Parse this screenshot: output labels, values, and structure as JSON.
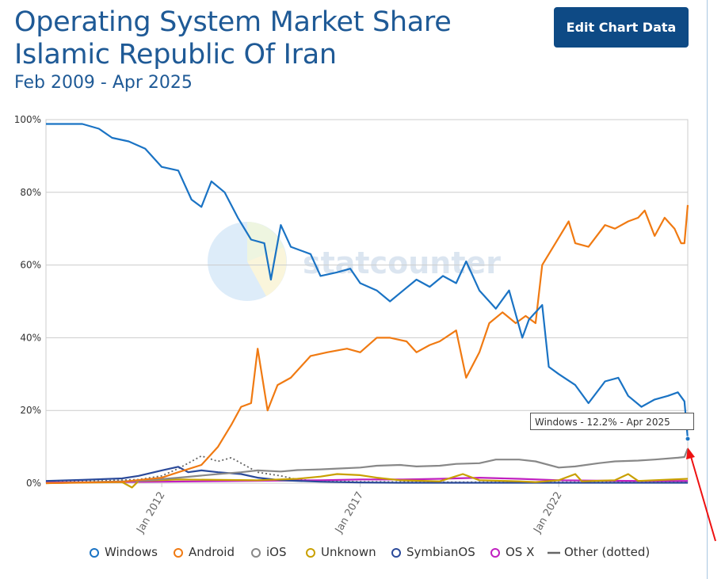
{
  "header": {
    "title": "Operating System Market Share Islamic Republic Of Iran",
    "subtitle": "Feb 2009 - Apr 2025",
    "edit_button": "Edit Chart Data"
  },
  "watermark": "statcounter",
  "tooltip": "Windows - 12.2% - Apr 2025",
  "chart_data": {
    "type": "line",
    "title": "Operating System Market Share Islamic Republic Of Iran",
    "subtitle": "Feb 2009 - Apr 2025",
    "x_range": [
      "2009-02",
      "2025-04"
    ],
    "x_ticks": [
      "Jan 2012",
      "Jan 2017",
      "Jan 2022"
    ],
    "y_ticks": [
      "0%",
      "20%",
      "40%",
      "60%",
      "80%",
      "100%"
    ],
    "ylim": [
      0,
      100
    ],
    "grid": true,
    "legend_position": "bottom",
    "series": [
      {
        "name": "Windows",
        "color": "#1a73c4",
        "points": [
          [
            "2009-02",
            98.8
          ],
          [
            "2010-01",
            98.8
          ],
          [
            "2010-06",
            97.5
          ],
          [
            "2010-10",
            95
          ],
          [
            "2011-03",
            94
          ],
          [
            "2011-08",
            92
          ],
          [
            "2012-01",
            87
          ],
          [
            "2012-06",
            86
          ],
          [
            "2012-10",
            78
          ],
          [
            "2013-01",
            76
          ],
          [
            "2013-04",
            83
          ],
          [
            "2013-08",
            80
          ],
          [
            "2013-12",
            73
          ],
          [
            "2014-04",
            67
          ],
          [
            "2014-08",
            66
          ],
          [
            "2014-10",
            56
          ],
          [
            "2015-01",
            71
          ],
          [
            "2015-04",
            65
          ],
          [
            "2015-10",
            63
          ],
          [
            "2016-01",
            57
          ],
          [
            "2016-06",
            58
          ],
          [
            "2016-10",
            59
          ],
          [
            "2017-01",
            55
          ],
          [
            "2017-06",
            53
          ],
          [
            "2017-10",
            50
          ],
          [
            "2018-02",
            53
          ],
          [
            "2018-06",
            56
          ],
          [
            "2018-10",
            54
          ],
          [
            "2019-02",
            57
          ],
          [
            "2019-06",
            55
          ],
          [
            "2019-09",
            61
          ],
          [
            "2020-01",
            53
          ],
          [
            "2020-06",
            48
          ],
          [
            "2020-10",
            53
          ],
          [
            "2021-02",
            40
          ],
          [
            "2021-04",
            45
          ],
          [
            "2021-08",
            49
          ],
          [
            "2021-10",
            32
          ],
          [
            "2022-01",
            30
          ],
          [
            "2022-06",
            27
          ],
          [
            "2022-10",
            22
          ],
          [
            "2023-03",
            28
          ],
          [
            "2023-07",
            29
          ],
          [
            "2023-10",
            24
          ],
          [
            "2024-02",
            21
          ],
          [
            "2024-06",
            23
          ],
          [
            "2024-10",
            24
          ],
          [
            "2025-01",
            25
          ],
          [
            "2025-03",
            22.5
          ],
          [
            "2025-04",
            12.2
          ]
        ]
      },
      {
        "name": "Android",
        "color": "#f07a12",
        "points": [
          [
            "2009-02",
            0
          ],
          [
            "2011-01",
            0.4
          ],
          [
            "2012-01",
            1.5
          ],
          [
            "2012-06",
            3
          ],
          [
            "2013-01",
            5
          ],
          [
            "2013-06",
            10
          ],
          [
            "2013-10",
            16
          ],
          [
            "2014-01",
            21
          ],
          [
            "2014-04",
            22
          ],
          [
            "2014-06",
            37
          ],
          [
            "2014-09",
            20
          ],
          [
            "2014-12",
            27
          ],
          [
            "2015-04",
            29
          ],
          [
            "2015-10",
            35
          ],
          [
            "2016-03",
            36
          ],
          [
            "2016-09",
            37
          ],
          [
            "2017-01",
            36
          ],
          [
            "2017-06",
            40
          ],
          [
            "2017-10",
            40
          ],
          [
            "2018-03",
            39
          ],
          [
            "2018-06",
            36
          ],
          [
            "2018-10",
            38
          ],
          [
            "2019-01",
            39
          ],
          [
            "2019-06",
            42
          ],
          [
            "2019-09",
            29
          ],
          [
            "2020-01",
            36
          ],
          [
            "2020-04",
            44
          ],
          [
            "2020-08",
            47
          ],
          [
            "2020-12",
            44
          ],
          [
            "2021-03",
            46
          ],
          [
            "2021-06",
            44
          ],
          [
            "2021-08",
            60
          ],
          [
            "2021-12",
            66
          ],
          [
            "2022-04",
            72
          ],
          [
            "2022-06",
            66
          ],
          [
            "2022-10",
            65
          ],
          [
            "2023-03",
            71
          ],
          [
            "2023-06",
            70
          ],
          [
            "2023-10",
            72
          ],
          [
            "2024-01",
            73
          ],
          [
            "2024-03",
            75
          ],
          [
            "2024-06",
            68
          ],
          [
            "2024-09",
            73
          ],
          [
            "2024-12",
            70
          ],
          [
            "2025-02",
            66
          ],
          [
            "2025-03",
            66
          ],
          [
            "2025-04",
            76.5
          ]
        ]
      },
      {
        "name": "iOS",
        "color": "#888888",
        "points": [
          [
            "2009-02",
            0
          ],
          [
            "2011-06",
            0.6
          ],
          [
            "2012-06",
            1.5
          ],
          [
            "2013-06",
            2.5
          ],
          [
            "2014-01",
            3
          ],
          [
            "2014-06",
            3.5
          ],
          [
            "2015-01",
            3.2
          ],
          [
            "2015-06",
            3.6
          ],
          [
            "2016-01",
            3.8
          ],
          [
            "2016-06",
            4
          ],
          [
            "2017-01",
            4.3
          ],
          [
            "2017-06",
            4.8
          ],
          [
            "2018-01",
            5
          ],
          [
            "2018-06",
            4.6
          ],
          [
            "2019-01",
            4.8
          ],
          [
            "2019-06",
            5.3
          ],
          [
            "2020-01",
            5.5
          ],
          [
            "2020-06",
            6.5
          ],
          [
            "2021-01",
            6.5
          ],
          [
            "2021-06",
            6
          ],
          [
            "2022-01",
            4.3
          ],
          [
            "2022-06",
            4.6
          ],
          [
            "2023-01",
            5.5
          ],
          [
            "2023-06",
            6
          ],
          [
            "2024-01",
            6.2
          ],
          [
            "2024-06",
            6.5
          ],
          [
            "2025-01",
            7
          ],
          [
            "2025-03",
            7.2
          ],
          [
            "2025-04",
            9.5
          ]
        ]
      },
      {
        "name": "Unknown",
        "color": "#c9a000",
        "points": [
          [
            "2009-02",
            0
          ],
          [
            "2011-01",
            0.3
          ],
          [
            "2011-04",
            -1.2
          ],
          [
            "2011-06",
            0.6
          ],
          [
            "2012-06",
            1
          ],
          [
            "2014-06",
            0.8
          ],
          [
            "2015-06",
            1.2
          ],
          [
            "2016-01",
            1.8
          ],
          [
            "2016-06",
            2.5
          ],
          [
            "2017-01",
            2.2
          ],
          [
            "2017-06",
            1.5
          ],
          [
            "2018-01",
            0.8
          ],
          [
            "2019-01",
            0.5
          ],
          [
            "2019-08",
            2.5
          ],
          [
            "2020-01",
            0.8
          ],
          [
            "2021-01",
            0.5
          ],
          [
            "2021-06",
            0.3
          ],
          [
            "2022-01",
            0.8
          ],
          [
            "2022-06",
            2.5
          ],
          [
            "2022-08",
            0.5
          ],
          [
            "2023-06",
            0.8
          ],
          [
            "2023-10",
            2.5
          ],
          [
            "2024-01",
            0.6
          ],
          [
            "2025-04",
            1.2
          ]
        ]
      },
      {
        "name": "SymbianOS",
        "color": "#2b4a9a",
        "points": [
          [
            "2009-02",
            0.6
          ],
          [
            "2010-01",
            0.9
          ],
          [
            "2011-01",
            1.3
          ],
          [
            "2011-06",
            2
          ],
          [
            "2012-01",
            3.5
          ],
          [
            "2012-06",
            4.5
          ],
          [
            "2012-09",
            3
          ],
          [
            "2013-01",
            3.5
          ],
          [
            "2013-06",
            3
          ],
          [
            "2014-01",
            2.5
          ],
          [
            "2014-06",
            1.5
          ],
          [
            "2015-01",
            0.8
          ],
          [
            "2016-01",
            0.4
          ],
          [
            "2017-01",
            0.2
          ],
          [
            "2018-01",
            0.1
          ],
          [
            "2025-04",
            0.1
          ]
        ]
      },
      {
        "name": "OS X",
        "color": "#c020c0",
        "points": [
          [
            "2009-02",
            0.2
          ],
          [
            "2012-01",
            0.4
          ],
          [
            "2014-01",
            0.6
          ],
          [
            "2016-01",
            0.8
          ],
          [
            "2017-01",
            1
          ],
          [
            "2018-01",
            1
          ],
          [
            "2019-01",
            1.2
          ],
          [
            "2020-01",
            1.5
          ],
          [
            "2021-01",
            1.2
          ],
          [
            "2022-01",
            0.8
          ],
          [
            "2023-01",
            0.7
          ],
          [
            "2024-01",
            0.6
          ],
          [
            "2025-04",
            0.6
          ]
        ]
      },
      {
        "name": "Other (dotted)",
        "color": "#666666",
        "dashed": true,
        "points": [
          [
            "2009-02",
            0.4
          ],
          [
            "2010-06",
            0.6
          ],
          [
            "2011-06",
            1
          ],
          [
            "2012-01",
            2
          ],
          [
            "2012-06",
            4
          ],
          [
            "2012-10",
            6
          ],
          [
            "2013-01",
            7.5
          ],
          [
            "2013-06",
            6
          ],
          [
            "2013-10",
            7
          ],
          [
            "2014-01",
            5.5
          ],
          [
            "2014-06",
            3
          ],
          [
            "2015-01",
            2
          ],
          [
            "2015-06",
            1
          ],
          [
            "2016-01",
            0.6
          ],
          [
            "2017-01",
            0.4
          ],
          [
            "2019-01",
            0.3
          ],
          [
            "2021-01",
            0.3
          ],
          [
            "2023-01",
            0.3
          ],
          [
            "2025-04",
            0.3
          ]
        ]
      }
    ]
  }
}
